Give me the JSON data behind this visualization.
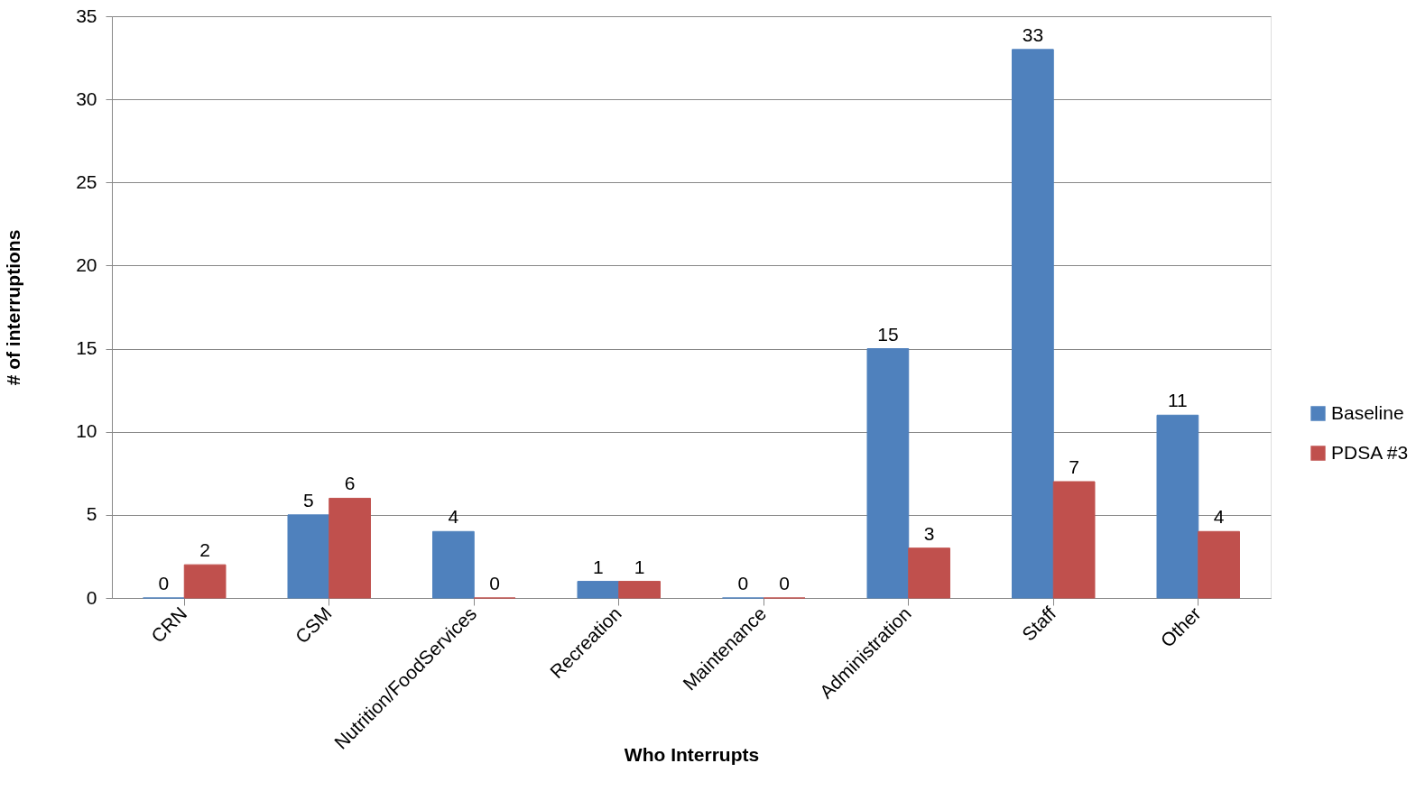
{
  "chart_data": {
    "type": "bar",
    "xlabel": "Who Interrupts",
    "ylabel": "# of interruptions",
    "categories": [
      "CRN",
      "CSM",
      "Nutrition/FoodServices",
      "Recreation",
      "Maintenance",
      "Administration",
      "Staff",
      "Other"
    ],
    "series": [
      {
        "name": "Baseline",
        "color": "#4f81bd",
        "values": [
          0,
          5,
          4,
          1,
          0,
          15,
          33,
          11
        ]
      },
      {
        "name": "PDSA #3",
        "color": "#c0504d",
        "values": [
          2,
          6,
          0,
          1,
          0,
          3,
          7,
          4
        ]
      }
    ],
    "ylim": [
      0,
      35
    ],
    "yticks": [
      0,
      5,
      10,
      15,
      20,
      25,
      30,
      35
    ],
    "grid": "y",
    "legend": "right",
    "data_labels": true
  }
}
